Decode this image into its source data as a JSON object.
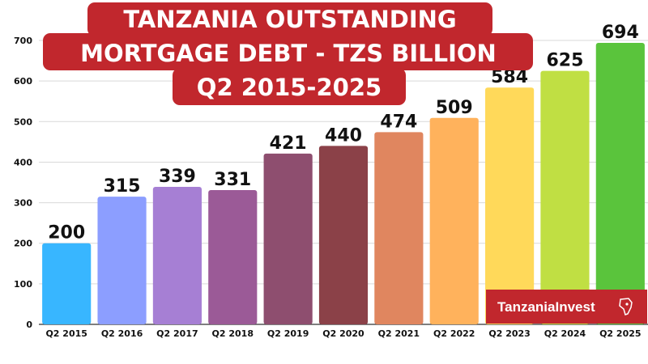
{
  "chart_data": {
    "type": "bar",
    "title_lines": [
      "TANZANIA OUTSTANDING",
      "MORTGAGE DEBT - TZS BILLION",
      "Q2 2015-2025"
    ],
    "categories": [
      "Q2 2015",
      "Q2 2016",
      "Q2 2017",
      "Q2 2018",
      "Q2 2019",
      "Q2 2020",
      "Q2 2021",
      "Q2 2022",
      "Q2 2023",
      "Q2 2024",
      "Q2 2025"
    ],
    "values": [
      200,
      315,
      339,
      331,
      421,
      440,
      474,
      509,
      584,
      625,
      694
    ],
    "colors": [
      "#38b6ff",
      "#8c9eff",
      "#a67fd4",
      "#9b5a97",
      "#8e4e6f",
      "#8b4148",
      "#e0865f",
      "#ffb25c",
      "#ffd95a",
      "#c0df43",
      "#5ac43c"
    ],
    "yticks": [
      0,
      100,
      200,
      300,
      400,
      500,
      600,
      700
    ],
    "ylim": [
      0,
      720
    ],
    "grid": true,
    "xlabel": "",
    "ylabel": ""
  },
  "brand": {
    "title_bg": "#c1272d",
    "logo_text": "TanzaniaInvest",
    "logo_bg": "#c1272d"
  }
}
